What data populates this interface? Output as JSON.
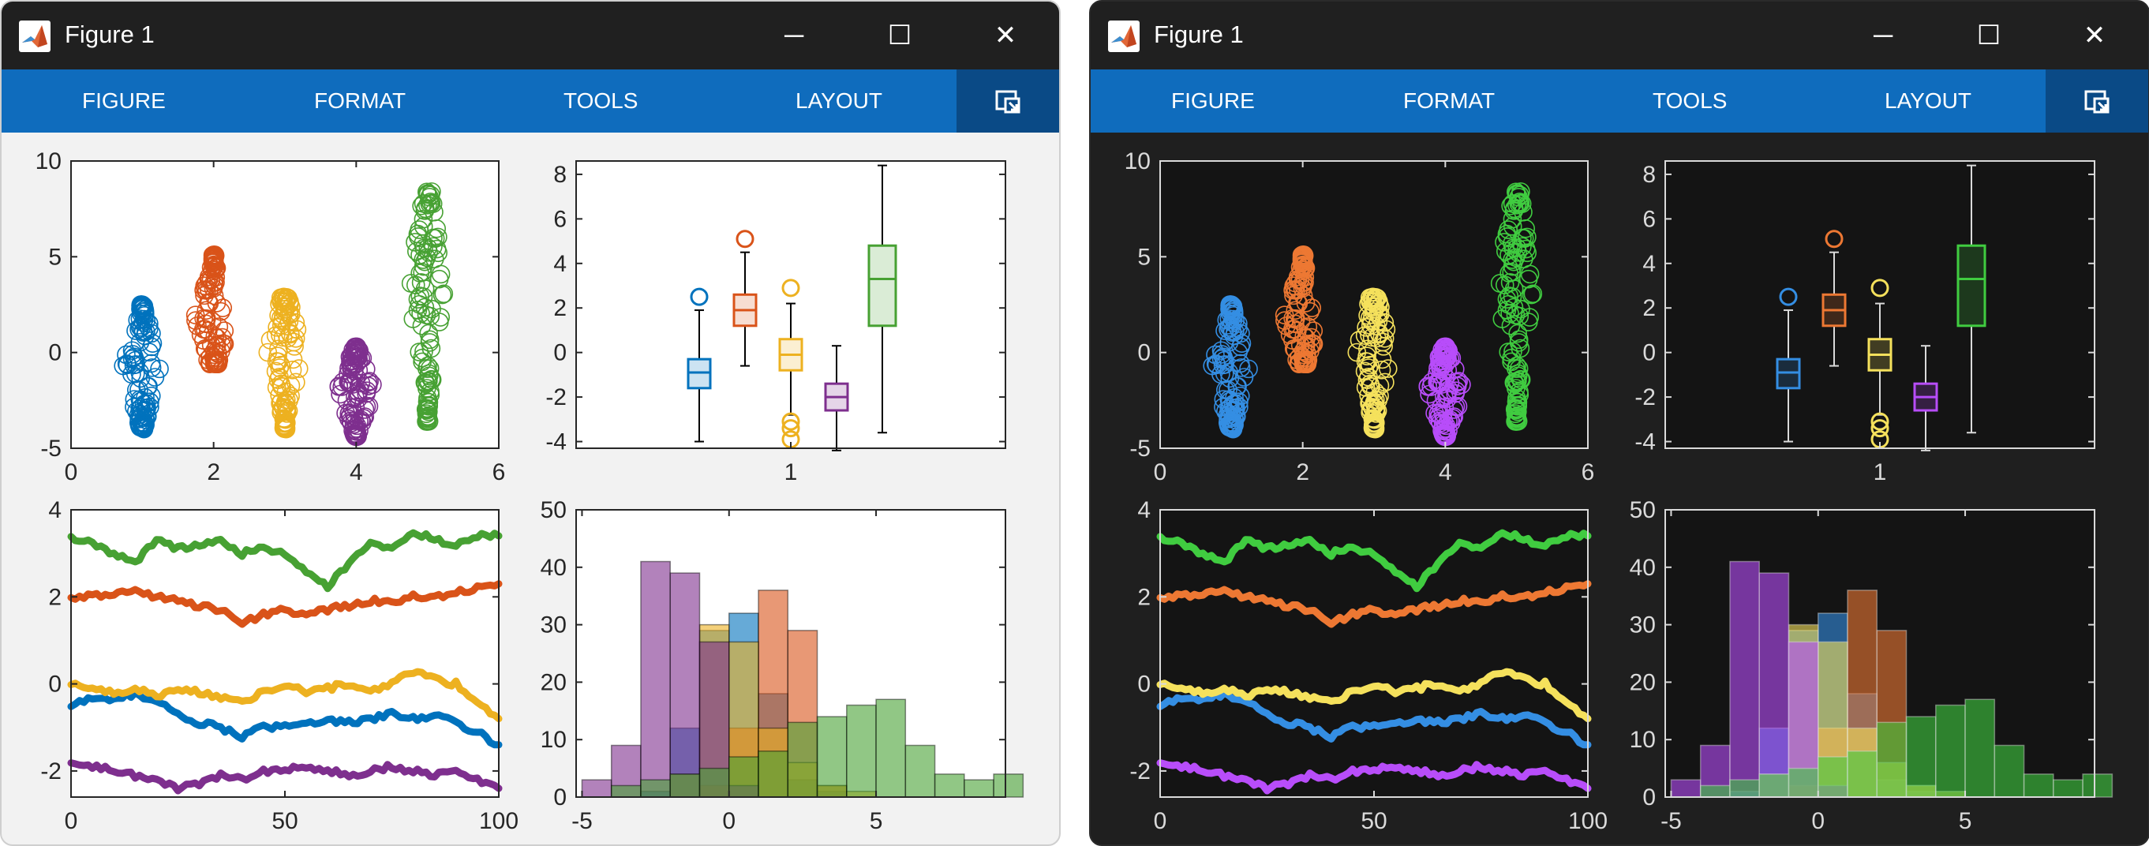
{
  "windows": [
    {
      "theme": "light",
      "title": "Figure 1",
      "tabs": [
        "FIGURE",
        "FORMAT",
        "TOOLS",
        "LAYOUT"
      ],
      "controls": {
        "minimize": "─",
        "maximize": "☐",
        "close": "✕"
      }
    },
    {
      "theme": "dark",
      "title": "Figure 1",
      "tabs": [
        "FIGURE",
        "FORMAT",
        "TOOLS",
        "LAYOUT"
      ],
      "controls": {
        "minimize": "─",
        "maximize": "☐",
        "close": "✕"
      }
    }
  ],
  "icons": {
    "app": "matlab-logo-icon",
    "undock": "undock-figure-icon"
  },
  "themes": {
    "light": {
      "axes_bg": "#ffffff",
      "axes_edge": "#262626",
      "text": "#262626",
      "whisker": "#000000"
    },
    "dark": {
      "axes_bg": "#141414",
      "axes_edge": "#dadada",
      "text": "#dadada",
      "whisker": "#dadada"
    }
  },
  "palettes": {
    "light": [
      "#0072bd",
      "#d95319",
      "#edb120",
      "#7e2f8e",
      "#47a133"
    ],
    "dark": [
      "#348ee3",
      "#ed7833",
      "#f5e15c",
      "#b84dfa",
      "#40cc40"
    ]
  },
  "chart_data": [
    {
      "type": "scatter",
      "marker": "open circle",
      "x_tick_labels": [
        "0",
        "2",
        "4",
        "6"
      ],
      "y_tick_labels": [
        "-5",
        "0",
        "5",
        "10"
      ],
      "xlim": [
        0,
        6
      ],
      "ylim": [
        -5,
        10
      ],
      "series": [
        {
          "x_center": 1,
          "y_mean": -0.8,
          "y_min": -4.0,
          "y_max": 2.5
        },
        {
          "x_center": 2,
          "y_mean": 1.8,
          "y_min": -0.6,
          "y_max": 5.1
        },
        {
          "x_center": 3,
          "y_mean": -0.1,
          "y_min": -4.0,
          "y_max": 2.9
        },
        {
          "x_center": 4,
          "y_mean": -2.0,
          "y_min": -4.4,
          "y_max": 0.3
        },
        {
          "x_center": 5,
          "y_mean": 3.3,
          "y_min": -3.6,
          "y_max": 8.4
        }
      ]
    },
    {
      "type": "box",
      "x_tick_labels": [
        "1"
      ],
      "y_tick_labels": [
        "-4",
        "-2",
        "0",
        "2",
        "4",
        "6",
        "8"
      ],
      "ylim": [
        -4.3,
        8.6
      ],
      "boxes": [
        {
          "q1": -1.6,
          "median": -0.9,
          "q3": -0.3,
          "whisker_low": -4.0,
          "whisker_high": 1.9,
          "outliers": [
            2.5
          ]
        },
        {
          "q1": 1.2,
          "median": 1.9,
          "q3": 2.6,
          "whisker_low": -0.6,
          "whisker_high": 4.5,
          "outliers": [
            5.1
          ]
        },
        {
          "q1": -0.8,
          "median": -0.1,
          "q3": 0.6,
          "whisker_low": -2.8,
          "whisker_high": 2.2,
          "outliers": [
            2.9,
            -3.1,
            -3.4,
            -3.9
          ]
        },
        {
          "q1": -2.6,
          "median": -2.0,
          "q3": -1.4,
          "whisker_low": -4.4,
          "whisker_high": 0.3,
          "outliers": []
        },
        {
          "q1": 1.2,
          "median": 3.3,
          "q3": 4.8,
          "whisker_low": -3.6,
          "whisker_high": 8.4,
          "outliers": []
        }
      ]
    },
    {
      "type": "line",
      "x_tick_labels": [
        "0",
        "50",
        "100"
      ],
      "y_tick_labels": [
        "-2",
        "0",
        "2",
        "4"
      ],
      "xlim": [
        0,
        100
      ],
      "ylim": [
        -2.6,
        4
      ],
      "series": [
        {
          "points": [
            [
              0,
              -0.5
            ],
            [
              5,
              -0.3
            ],
            [
              10,
              -0.4
            ],
            [
              15,
              -0.2
            ],
            [
              20,
              -0.4
            ],
            [
              25,
              -0.7
            ],
            [
              30,
              -0.9
            ],
            [
              35,
              -1.0
            ],
            [
              40,
              -1.2
            ],
            [
              45,
              -1.0
            ],
            [
              50,
              -1.0
            ],
            [
              55,
              -0.9
            ],
            [
              60,
              -0.8
            ],
            [
              65,
              -0.9
            ],
            [
              70,
              -0.8
            ],
            [
              75,
              -0.7
            ],
            [
              80,
              -0.8
            ],
            [
              85,
              -0.7
            ],
            [
              90,
              -0.9
            ],
            [
              95,
              -1.1
            ],
            [
              100,
              -1.4
            ]
          ]
        },
        {
          "points": [
            [
              0,
              2.0
            ],
            [
              5,
              2.0
            ],
            [
              10,
              2.1
            ],
            [
              15,
              2.1
            ],
            [
              20,
              2.0
            ],
            [
              25,
              1.9
            ],
            [
              30,
              1.8
            ],
            [
              35,
              1.7
            ],
            [
              40,
              1.4
            ],
            [
              45,
              1.6
            ],
            [
              50,
              1.7
            ],
            [
              55,
              1.6
            ],
            [
              60,
              1.7
            ],
            [
              65,
              1.8
            ],
            [
              70,
              1.9
            ],
            [
              75,
              1.9
            ],
            [
              80,
              2.0
            ],
            [
              85,
              2.0
            ],
            [
              90,
              2.1
            ],
            [
              95,
              2.2
            ],
            [
              100,
              2.3
            ]
          ]
        },
        {
          "points": [
            [
              0,
              0.0
            ],
            [
              5,
              -0.1
            ],
            [
              10,
              -0.2
            ],
            [
              15,
              -0.1
            ],
            [
              20,
              -0.3
            ],
            [
              25,
              -0.1
            ],
            [
              30,
              -0.2
            ],
            [
              35,
              -0.3
            ],
            [
              40,
              -0.4
            ],
            [
              45,
              -0.2
            ],
            [
              50,
              0.0
            ],
            [
              55,
              -0.2
            ],
            [
              60,
              -0.1
            ],
            [
              65,
              0.0
            ],
            [
              70,
              -0.2
            ],
            [
              75,
              0.0
            ],
            [
              80,
              0.3
            ],
            [
              85,
              0.1
            ],
            [
              90,
              0.0
            ],
            [
              95,
              -0.4
            ],
            [
              100,
              -0.8
            ]
          ]
        },
        {
          "points": [
            [
              0,
              -1.8
            ],
            [
              5,
              -1.9
            ],
            [
              10,
              -2.0
            ],
            [
              15,
              -2.1
            ],
            [
              20,
              -2.2
            ],
            [
              25,
              -2.4
            ],
            [
              30,
              -2.3
            ],
            [
              35,
              -2.1
            ],
            [
              40,
              -2.2
            ],
            [
              45,
              -2.0
            ],
            [
              50,
              -2.0
            ],
            [
              55,
              -1.9
            ],
            [
              60,
              -2.0
            ],
            [
              65,
              -2.1
            ],
            [
              70,
              -2.0
            ],
            [
              75,
              -1.9
            ],
            [
              80,
              -2.0
            ],
            [
              85,
              -2.1
            ],
            [
              90,
              -2.0
            ],
            [
              95,
              -2.2
            ],
            [
              100,
              -2.4
            ]
          ]
        },
        {
          "points": [
            [
              0,
              3.4
            ],
            [
              5,
              3.2
            ],
            [
              10,
              3.0
            ],
            [
              15,
              2.8
            ],
            [
              20,
              3.3
            ],
            [
              25,
              3.1
            ],
            [
              30,
              3.2
            ],
            [
              35,
              3.3
            ],
            [
              40,
              3.0
            ],
            [
              45,
              3.1
            ],
            [
              50,
              3.0
            ],
            [
              55,
              2.6
            ],
            [
              60,
              2.2
            ],
            [
              65,
              2.8
            ],
            [
              70,
              3.2
            ],
            [
              75,
              3.1
            ],
            [
              80,
              3.5
            ],
            [
              85,
              3.3
            ],
            [
              90,
              3.2
            ],
            [
              95,
              3.4
            ],
            [
              100,
              3.4
            ]
          ]
        }
      ]
    },
    {
      "type": "histogram",
      "bin_width": 1,
      "x_tick_labels": [
        "-5",
        "0",
        "5"
      ],
      "y_tick_labels": [
        "0",
        "10",
        "20",
        "30",
        "40",
        "50"
      ],
      "xlim": [
        -5.2,
        9.4
      ],
      "ylim": [
        0,
        50
      ],
      "series": [
        {
          "bin_start": -3,
          "counts": [
            1,
            12,
            29,
            32,
            18,
            3,
            1
          ]
        },
        {
          "bin_start": -1,
          "counts": [
            2,
            12,
            36,
            29,
            2
          ]
        },
        {
          "bin_start": -3,
          "counts": [
            0,
            4,
            30,
            27,
            12,
            6,
            2,
            1
          ]
        },
        {
          "bin_start": -5,
          "counts": [
            3,
            9,
            41,
            39,
            27,
            2
          ]
        },
        {
          "bin_start": -4,
          "counts": [
            2,
            3,
            4,
            5,
            7,
            8,
            13,
            14,
            16,
            17,
            9,
            4,
            3,
            4
          ]
        }
      ]
    }
  ]
}
